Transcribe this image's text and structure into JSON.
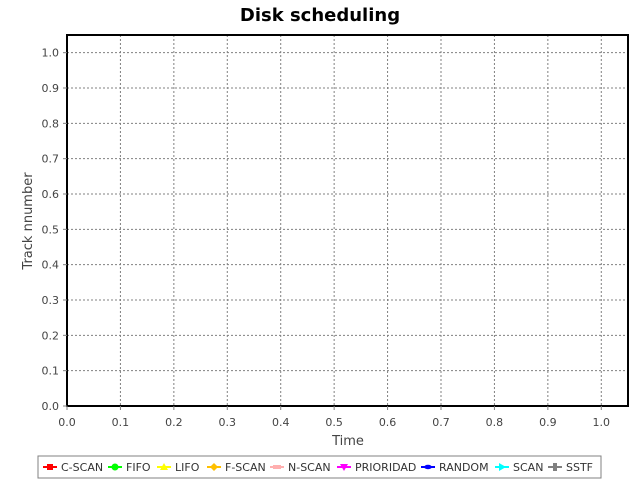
{
  "chart_data": {
    "type": "line",
    "title": "Disk scheduling",
    "xlabel": "Time",
    "ylabel": "Track nnumber",
    "xlim": [
      0.0,
      1.05
    ],
    "ylim": [
      0.0,
      1.05
    ],
    "x_ticks": [
      "0.0",
      "0.1",
      "0.2",
      "0.3",
      "0.4",
      "0.5",
      "0.6",
      "0.7",
      "0.8",
      "0.9",
      "1.0"
    ],
    "y_ticks": [
      "0.0",
      "0.1",
      "0.2",
      "0.3",
      "0.4",
      "0.5",
      "0.6",
      "0.7",
      "0.8",
      "0.9",
      "1.0"
    ],
    "grid": true,
    "legend_position": "bottom",
    "series": [
      {
        "name": "C-SCAN",
        "color": "#ff0000",
        "marker": "square",
        "values": []
      },
      {
        "name": "FIFO",
        "color": "#00ff00",
        "marker": "circle",
        "values": []
      },
      {
        "name": "LIFO",
        "color": "#ffff00",
        "marker": "triangle-up",
        "values": []
      },
      {
        "name": "F-SCAN",
        "color": "#ffc000",
        "marker": "diamond",
        "values": []
      },
      {
        "name": "N-SCAN",
        "color": "#ffafaf",
        "marker": "rect-h",
        "values": []
      },
      {
        "name": "PRIORIDAD",
        "color": "#ff00ff",
        "marker": "triangle-down",
        "values": []
      },
      {
        "name": "RANDOM",
        "color": "#0000ff",
        "marker": "ellipse",
        "values": []
      },
      {
        "name": "SCAN",
        "color": "#00ffff",
        "marker": "triangle-right",
        "values": []
      },
      {
        "name": "SSTF",
        "color": "#808080",
        "marker": "rect-v",
        "values": []
      }
    ]
  }
}
